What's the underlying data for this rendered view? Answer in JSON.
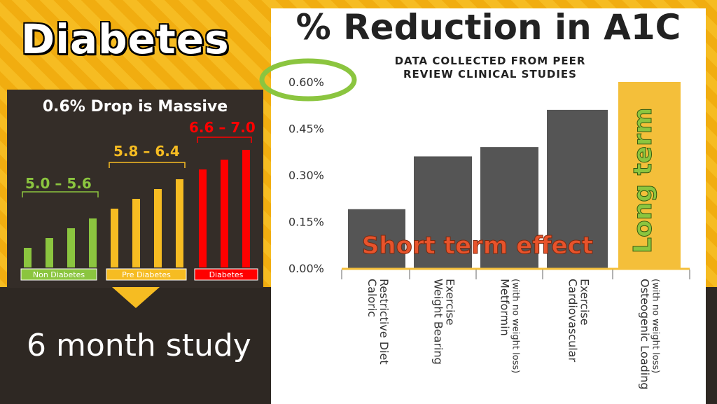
{
  "left": {
    "title": "Diabetes",
    "drop_title": "0.6% Drop is Massive",
    "groups": [
      {
        "label": "Non Diabetes",
        "range": "5.0 – 5.6",
        "color": "#8bc53f",
        "bars": [
          5.0,
          5.2,
          5.4,
          5.6
        ]
      },
      {
        "label": "Pre Diabetes",
        "range": "5.8 – 6.4",
        "color": "#f6bc22",
        "bars": [
          5.8,
          6.0,
          6.2,
          6.4
        ]
      },
      {
        "label": "Diabetes",
        "range": "6.6 – 7.0",
        "color": "#ff0000",
        "bars": [
          6.6,
          6.8,
          7.0
        ]
      }
    ],
    "study": "6 month study"
  },
  "chart_data": {
    "type": "bar",
    "title": "% Reduction in A1C",
    "subtitle": "DATA COLLECTED FROM PEER REVIEW CLINICAL STUDIES",
    "categories": [
      [
        "Caloric",
        "Restrictive Diet"
      ],
      [
        "Weight Bearing",
        "Exercise"
      ],
      [
        "Metformin",
        "(with no weight loss)"
      ],
      [
        "Cardiovascular",
        "Exercise"
      ],
      [
        "Osteogenic Loading",
        "(with no weight loss)"
      ]
    ],
    "values": [
      0.19,
      0.36,
      0.39,
      0.51,
      0.6
    ],
    "yticks": [
      "0.00%",
      "0.15%",
      "0.30%",
      "0.45%",
      "0.60%"
    ],
    "ylim": [
      0,
      0.6
    ],
    "bar_colors": [
      "#555555",
      "#555555",
      "#555555",
      "#555555",
      "#f4bf3a"
    ],
    "annotations": {
      "short": "Short term effect",
      "long": "Long term"
    },
    "highlight_color": "#8bc53f",
    "short_color": "#e8532b"
  }
}
